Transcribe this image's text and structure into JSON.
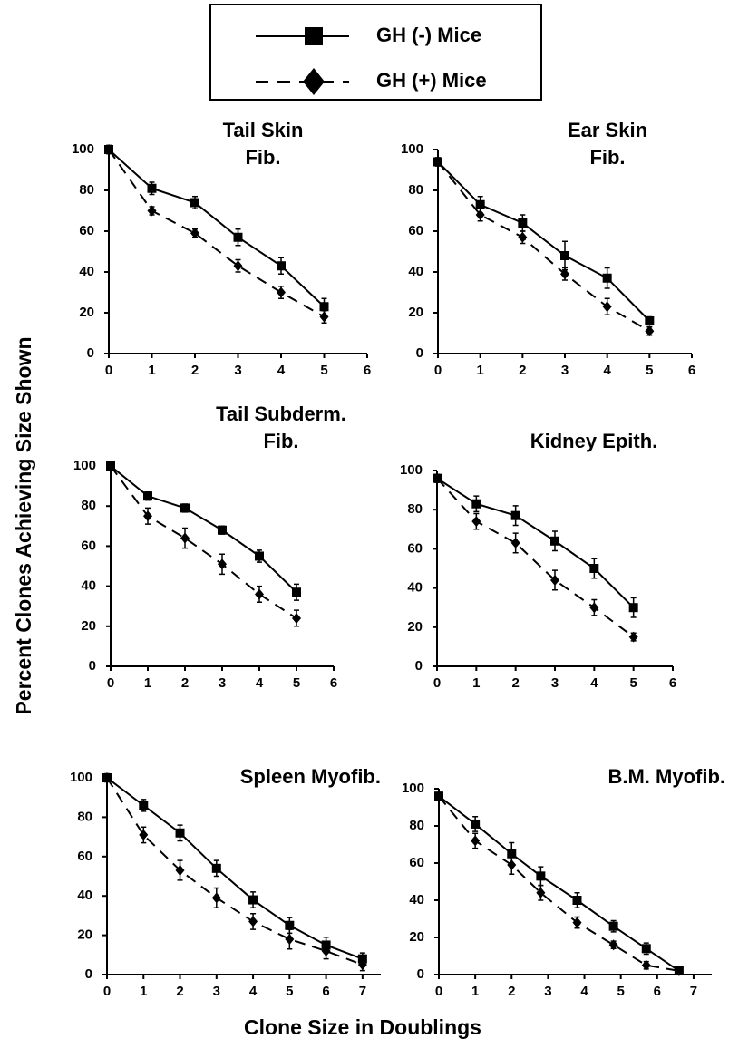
{
  "legend": [
    {
      "name": "GH (-) Mice",
      "dash": false,
      "marker": "square",
      "color": "#000"
    },
    {
      "name": "GH (+) Mice",
      "dash": true,
      "marker": "diamond",
      "color": "#000"
    }
  ],
  "ylabel": "Percent Clones Achieving Size Shown",
  "xlabel": "Clone Size in Doublings",
  "chart_data": [
    {
      "type": "line",
      "title": [
        "Tail Skin",
        "Fib."
      ],
      "x": [
        0,
        1,
        2,
        3,
        4,
        5
      ],
      "series": [
        {
          "values": [
            100,
            81,
            74,
            57,
            43,
            23
          ],
          "errors": [
            2,
            3,
            3,
            4,
            4,
            4
          ]
        },
        {
          "values": [
            100,
            70,
            59,
            43,
            30,
            18
          ],
          "errors": [
            2,
            2,
            2,
            3,
            3,
            3
          ]
        }
      ],
      "xlim": [
        0,
        6
      ],
      "ylim": [
        0,
        100
      ],
      "xticks": [
        0,
        1,
        2,
        3,
        4,
        5,
        6
      ],
      "yticks": [
        0,
        20,
        40,
        60,
        80,
        100
      ]
    },
    {
      "type": "line",
      "title": [
        "Ear Skin",
        "Fib."
      ],
      "x": [
        0,
        1,
        2,
        3,
        4,
        5
      ],
      "series": [
        {
          "values": [
            94,
            73,
            64,
            48,
            37,
            16
          ],
          "errors": [
            2,
            4,
            4,
            7,
            5,
            2
          ]
        },
        {
          "values": [
            94,
            68,
            57,
            39,
            23,
            11
          ],
          "errors": [
            2,
            3,
            3,
            3,
            4,
            2
          ]
        }
      ],
      "xlim": [
        0,
        6
      ],
      "ylim": [
        0,
        100
      ],
      "xticks": [
        0,
        1,
        2,
        3,
        4,
        5,
        6
      ],
      "yticks": [
        0,
        20,
        40,
        60,
        80,
        100
      ]
    },
    {
      "type": "line",
      "title": [
        "Tail Subderm.",
        "Fib."
      ],
      "x": [
        0,
        1,
        2,
        3,
        4,
        5
      ],
      "series": [
        {
          "values": [
            100,
            85,
            79,
            68,
            55,
            37
          ],
          "errors": [
            2,
            2,
            2,
            2,
            3,
            4
          ]
        },
        {
          "values": [
            100,
            75,
            64,
            51,
            36,
            24
          ],
          "errors": [
            2,
            4,
            5,
            5,
            4,
            4
          ]
        }
      ],
      "xlim": [
        0,
        6
      ],
      "ylim": [
        0,
        100
      ],
      "xticks": [
        0,
        1,
        2,
        3,
        4,
        5,
        6
      ],
      "yticks": [
        0,
        20,
        40,
        60,
        80,
        100
      ]
    },
    {
      "type": "line",
      "title": [
        "Kidney Epith."
      ],
      "x": [
        0,
        1,
        2,
        3,
        4,
        5
      ],
      "series": [
        {
          "values": [
            96,
            83,
            77,
            64,
            50,
            30
          ],
          "errors": [
            2,
            4,
            5,
            5,
            5,
            5
          ]
        },
        {
          "values": [
            96,
            74,
            63,
            44,
            30,
            15
          ],
          "errors": [
            2,
            4,
            5,
            5,
            4,
            2
          ]
        }
      ],
      "xlim": [
        0,
        6
      ],
      "ylim": [
        0,
        100
      ],
      "xticks": [
        0,
        1,
        2,
        3,
        4,
        5,
        6
      ],
      "yticks": [
        0,
        20,
        40,
        60,
        80,
        100
      ]
    },
    {
      "type": "line",
      "title": [
        "Spleen Myofib."
      ],
      "x": [
        0,
        1,
        2,
        3,
        4,
        5,
        6,
        7
      ],
      "series": [
        {
          "values": [
            100,
            86,
            72,
            54,
            38,
            25,
            15,
            8
          ],
          "errors": [
            2,
            3,
            4,
            4,
            4,
            4,
            4,
            3
          ]
        },
        {
          "values": [
            100,
            71,
            53,
            39,
            27,
            18,
            12,
            5
          ],
          "errors": [
            2,
            4,
            5,
            5,
            4,
            5,
            4,
            3
          ]
        }
      ],
      "xlim": [
        0,
        7.5
      ],
      "ylim": [
        0,
        100
      ],
      "xticks": [
        0,
        1,
        2,
        3,
        4,
        5,
        6,
        7
      ],
      "yticks": [
        0,
        20,
        40,
        60,
        80,
        100
      ]
    },
    {
      "type": "line",
      "title": [
        "B.M. Myofib."
      ],
      "x": [
        0,
        1,
        2,
        2.8,
        3.8,
        4.8,
        5.7,
        6.6
      ],
      "series": [
        {
          "values": [
            96,
            81,
            65,
            53,
            40,
            26,
            14,
            2
          ],
          "errors": [
            2,
            4,
            6,
            5,
            4,
            3,
            3,
            2
          ]
        },
        {
          "values": [
            96,
            72,
            59,
            44,
            28,
            16,
            5,
            2
          ],
          "errors": [
            2,
            4,
            5,
            4,
            3,
            2,
            2,
            2
          ]
        }
      ],
      "xlim": [
        0,
        7.5
      ],
      "ylim": [
        0,
        100
      ],
      "xticks": [
        0,
        1,
        2,
        3,
        4,
        5,
        6,
        7
      ],
      "yticks": [
        0,
        20,
        40,
        60,
        80,
        100
      ]
    }
  ]
}
